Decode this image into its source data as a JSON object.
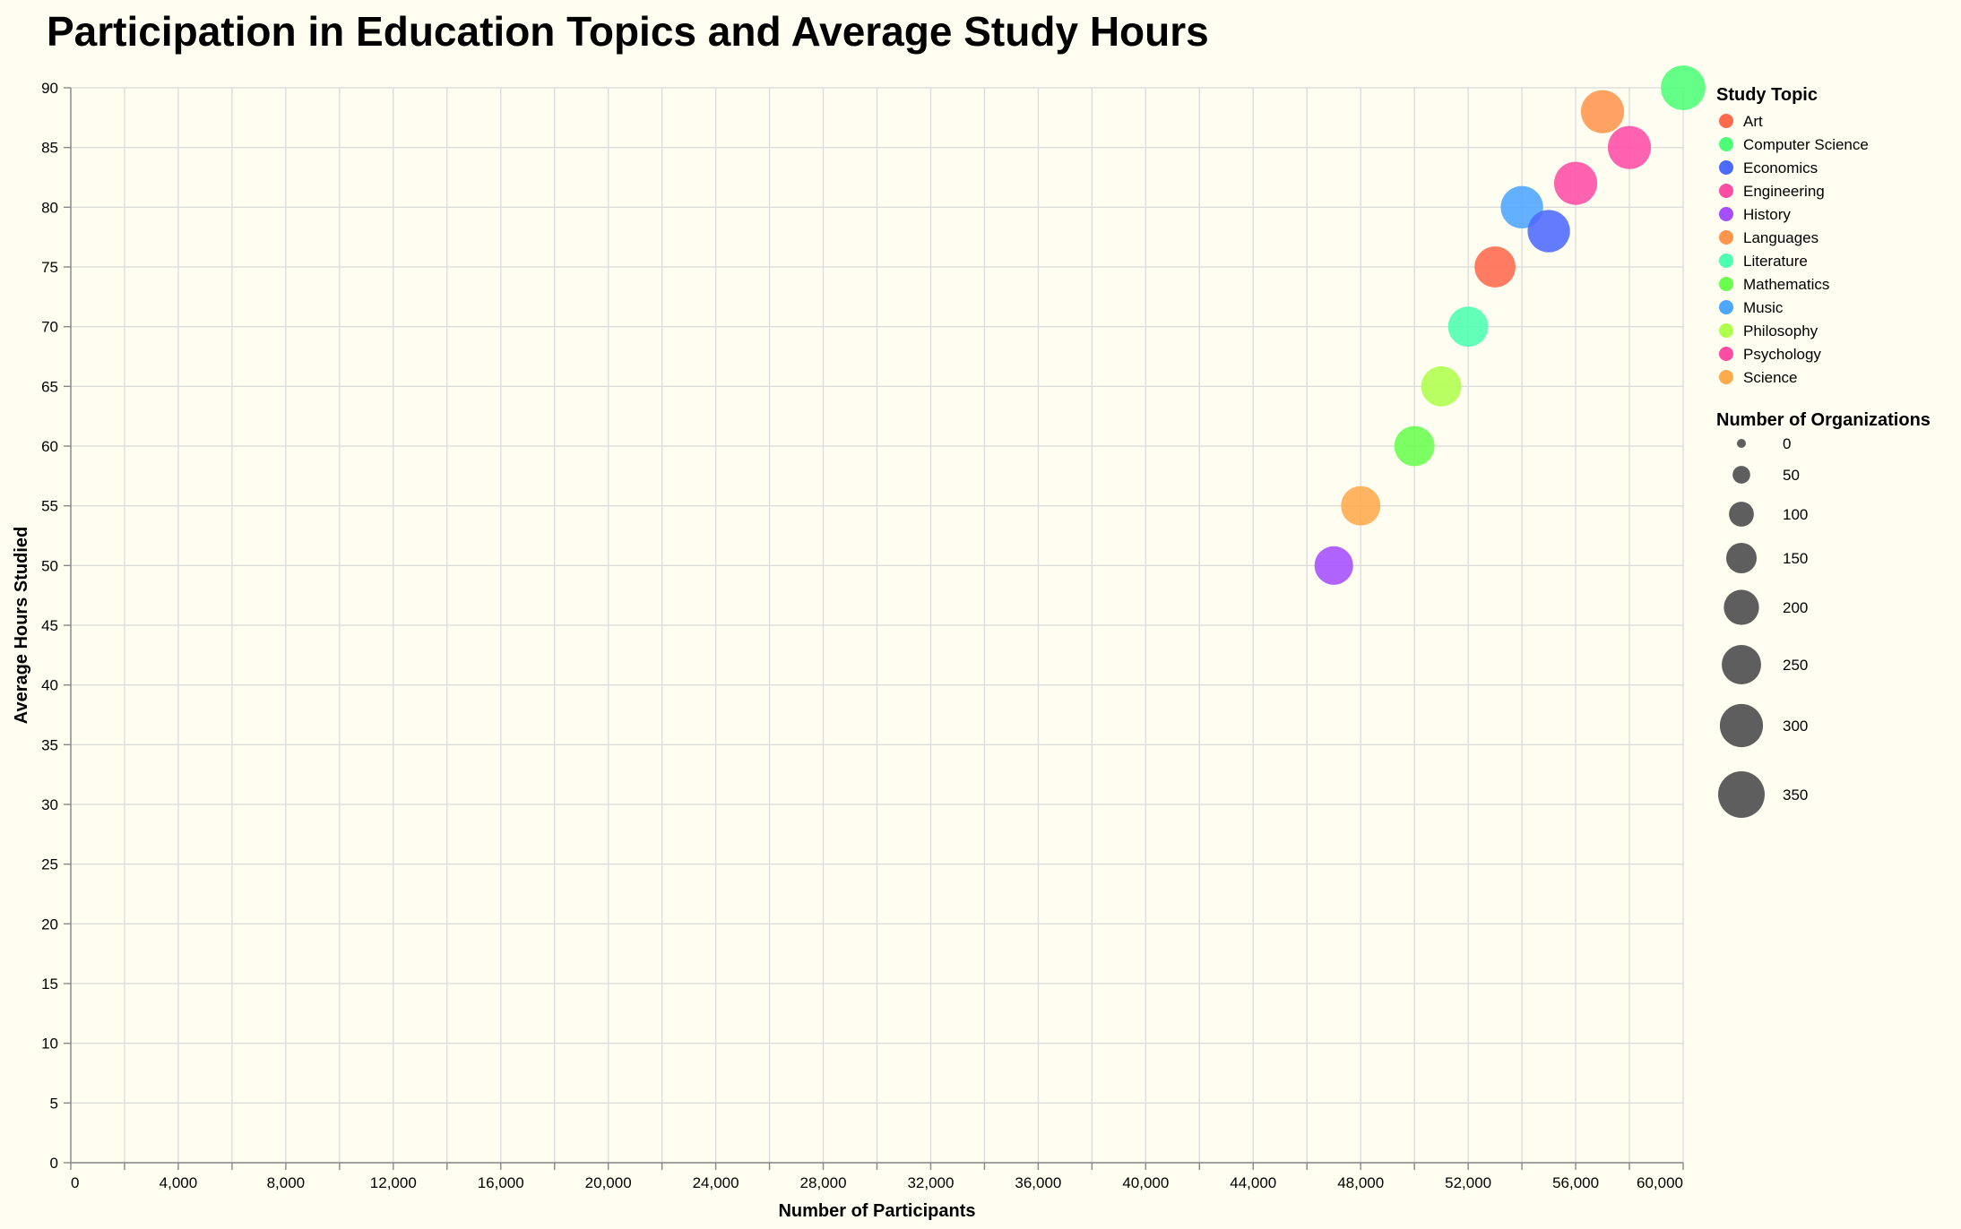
{
  "chart_data": {
    "type": "scatter",
    "title": "Participation in Education Topics and Average Study Hours",
    "xlabel": "Number of Participants",
    "ylabel": "Average Hours Studied",
    "xlim": [
      0,
      60000
    ],
    "ylim": [
      0,
      90
    ],
    "x_ticks": [
      0,
      4000,
      8000,
      12000,
      16000,
      20000,
      24000,
      28000,
      32000,
      36000,
      40000,
      44000,
      48000,
      52000,
      56000,
      60000
    ],
    "x_tick_labels": [
      "0",
      "4,000",
      "8,000",
      "12,000",
      "16,000",
      "20,000",
      "24,000",
      "28,000",
      "32,000",
      "36,000",
      "40,000",
      "44,000",
      "48,000",
      "52,000",
      "56,000",
      "60,000"
    ],
    "y_ticks": [
      0,
      5,
      10,
      15,
      20,
      25,
      30,
      35,
      40,
      45,
      50,
      55,
      60,
      65,
      70,
      75,
      80,
      85,
      90
    ],
    "y_tick_labels": [
      "0",
      "5",
      "10",
      "15",
      "20",
      "25",
      "30",
      "35",
      "40",
      "45",
      "50",
      "55",
      "60",
      "65",
      "70",
      "75",
      "80",
      "85",
      "90"
    ],
    "grid": true,
    "legend": {
      "position": "right",
      "color_title": "Study Topic",
      "size_title": "Number of Organizations",
      "size_values": [
        0,
        50,
        100,
        150,
        200,
        250,
        300,
        350
      ],
      "size_labels": [
        "0",
        "50",
        "100",
        "150",
        "200",
        "250",
        "300",
        "350"
      ],
      "size_swatch_color": "#555555"
    },
    "series": [
      {
        "name": "Art",
        "color": "#ff6a4d"
      },
      {
        "name": "Computer Science",
        "color": "#4dff77"
      },
      {
        "name": "Economics",
        "color": "#4d6aff"
      },
      {
        "name": "Engineering",
        "color": "#ff4da6"
      },
      {
        "name": "History",
        "color": "#a64dff"
      },
      {
        "name": "Languages",
        "color": "#ff954d"
      },
      {
        "name": "Literature",
        "color": "#4dffb0"
      },
      {
        "name": "Mathematics",
        "color": "#6aff4d"
      },
      {
        "name": "Music",
        "color": "#4da6ff"
      },
      {
        "name": "Philosophy",
        "color": "#b0ff4d"
      },
      {
        "name": "Psychology",
        "color": "#ff4da6"
      },
      {
        "name": "Science",
        "color": "#ffaa4d"
      }
    ],
    "points": [
      {
        "topic": "Computer Science",
        "x": 60000,
        "y": 90,
        "size": 320
      },
      {
        "topic": "Languages",
        "x": 57000,
        "y": 88,
        "size": 300
      },
      {
        "topic": "Psychology",
        "x": 58000,
        "y": 85,
        "size": 300
      },
      {
        "topic": "Engineering",
        "x": 56000,
        "y": 82,
        "size": 300
      },
      {
        "topic": "Music",
        "x": 54000,
        "y": 80,
        "size": 290
      },
      {
        "topic": "Economics",
        "x": 55000,
        "y": 78,
        "size": 290
      },
      {
        "topic": "Art",
        "x": 53000,
        "y": 75,
        "size": 270
      },
      {
        "topic": "Literature",
        "x": 52000,
        "y": 70,
        "size": 260
      },
      {
        "topic": "Philosophy",
        "x": 51000,
        "y": 65,
        "size": 260
      },
      {
        "topic": "Mathematics",
        "x": 50000,
        "y": 60,
        "size": 260
      },
      {
        "topic": "Science",
        "x": 48000,
        "y": 55,
        "size": 250
      },
      {
        "topic": "History",
        "x": 47000,
        "y": 50,
        "size": 240
      }
    ]
  }
}
